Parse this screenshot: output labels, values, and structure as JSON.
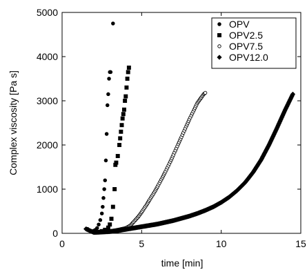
{
  "chart_data": {
    "type": "scatter",
    "xlabel": "time [min]",
    "ylabel": "Complex viscosity [Pa s]",
    "xlim": [
      0,
      15
    ],
    "ylim": [
      0,
      5000
    ],
    "x_ticks": [
      0,
      5,
      10,
      15
    ],
    "y_ticks": [
      0,
      1000,
      2000,
      3000,
      4000,
      5000
    ],
    "x_tick_labels": [
      "0",
      "5",
      "10",
      "15"
    ],
    "y_tick_labels": [
      "0",
      "1000",
      "2000",
      "3000",
      "4000",
      "5000"
    ],
    "grid": false,
    "legend_position": "top-right",
    "legend_entries": [
      {
        "name": "OPV",
        "marker": "filled-circle"
      },
      {
        "name": "OPV2.5",
        "marker": "filled-square"
      },
      {
        "name": "OPV7.5",
        "marker": "open-circle"
      },
      {
        "name": "OPV12.0",
        "marker": "filled-diamond"
      }
    ],
    "series": [
      {
        "name": "OPV",
        "marker": "filled-circle",
        "x": [
          1.6,
          1.8,
          2.0,
          2.1,
          2.2,
          2.3,
          2.4,
          2.5,
          2.55,
          2.6,
          2.65,
          2.7,
          2.75,
          2.8,
          2.85,
          2.9,
          2.95,
          3.0,
          3.05,
          3.2
        ],
        "y": [
          100,
          50,
          60,
          80,
          120,
          200,
          300,
          450,
          600,
          800,
          1000,
          1200,
          1650,
          2250,
          2900,
          3150,
          3500,
          3650,
          3650,
          4750
        ]
      },
      {
        "name": "OPV2.5",
        "marker": "filled-square",
        "x": [
          2.3,
          2.5,
          2.7,
          2.9,
          3.0,
          3.1,
          3.2,
          3.3,
          3.35,
          3.4,
          3.5,
          3.6,
          3.65,
          3.7,
          3.75,
          3.8,
          3.85,
          3.9,
          3.95,
          4.0,
          4.05,
          4.1,
          4.15,
          4.2
        ],
        "y": [
          30,
          50,
          80,
          130,
          200,
          330,
          600,
          1000,
          1550,
          1600,
          1750,
          2000,
          2150,
          2300,
          2450,
          2600,
          2700,
          2800,
          3000,
          3100,
          3300,
          3500,
          3650,
          3750
        ]
      },
      {
        "name": "OPV7.5",
        "marker": "open-circle",
        "x": [
          2.0,
          2.5,
          3.0,
          3.5,
          4.0,
          4.3,
          4.5,
          4.8,
          5.0,
          5.3,
          5.5,
          5.8,
          6.0,
          6.3,
          6.5,
          6.8,
          7.0,
          7.3,
          7.5,
          7.8,
          8.0,
          8.3,
          8.5,
          8.7,
          8.9,
          9.0
        ],
        "y": [
          20,
          30,
          50,
          80,
          120,
          180,
          260,
          380,
          480,
          640,
          760,
          930,
          1060,
          1260,
          1400,
          1620,
          1780,
          2020,
          2180,
          2420,
          2580,
          2800,
          2950,
          3050,
          3150,
          3180
        ]
      },
      {
        "name": "OPV12.0",
        "marker": "filled-diamond",
        "x": [
          1.5,
          2.0,
          2.5,
          3.0,
          3.5,
          4.0,
          4.5,
          5.0,
          5.5,
          6.0,
          6.5,
          7.0,
          7.5,
          8.0,
          8.5,
          9.0,
          9.5,
          10.0,
          10.5,
          11.0,
          11.5,
          12.0,
          12.5,
          13.0,
          13.5,
          14.0,
          14.5
        ],
        "y": [
          100,
          20,
          30,
          40,
          60,
          90,
          120,
          150,
          180,
          210,
          250,
          290,
          340,
          390,
          450,
          520,
          600,
          700,
          820,
          970,
          1150,
          1380,
          1660,
          2000,
          2380,
          2780,
          3150
        ]
      }
    ]
  }
}
